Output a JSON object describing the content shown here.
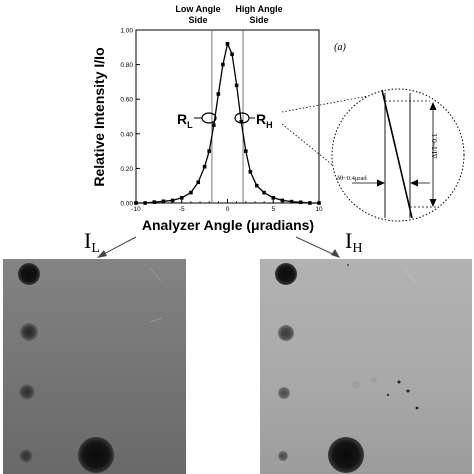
{
  "figure": {
    "panel_label": "(a)",
    "low_angle_label": [
      "Low Angle",
      "Side"
    ],
    "high_angle_label": [
      "High Angle",
      "Side"
    ],
    "r_left": {
      "main": "R",
      "sub": "L"
    },
    "r_right": {
      "main": "R",
      "sub": "H"
    },
    "image_left_label": {
      "main": "I",
      "sub": "L"
    },
    "image_right_label": {
      "main": "I",
      "sub": "H"
    },
    "inset": {
      "delta_theta": "δθ~0.4μrad",
      "delta_i": "ΔI/I~0.1"
    }
  },
  "chart_data": {
    "type": "line",
    "title": "",
    "xlabel": "Analyzer Angle (μradians)",
    "ylabel": "Relative Intensity   I/Io",
    "xlim": [
      -10,
      10
    ],
    "ylim": [
      0.0,
      1.0
    ],
    "x_ticks": [
      "-10",
      "-5",
      "0",
      "5",
      "10"
    ],
    "y_ticks": [
      "0.00",
      "0.20",
      "0.40",
      "0.60",
      "0.80",
      "1.00"
    ],
    "reference_lines_x": [
      -1.7,
      1.7
    ],
    "series": [
      {
        "points": [
          [
            -10,
            0.0
          ],
          [
            -9,
            0.0
          ],
          [
            -8,
            0.005
          ],
          [
            -7,
            0.01
          ],
          [
            -6,
            0.015
          ],
          [
            -5,
            0.03
          ],
          [
            -4,
            0.06
          ],
          [
            -3.2,
            0.12
          ],
          [
            -2.5,
            0.21
          ],
          [
            -2,
            0.3
          ],
          [
            -1.5,
            0.45
          ],
          [
            -1,
            0.63
          ],
          [
            -0.5,
            0.8
          ],
          [
            0,
            0.92
          ],
          [
            0.5,
            0.86
          ],
          [
            1,
            0.68
          ],
          [
            1.5,
            0.47
          ],
          [
            2,
            0.3
          ],
          [
            2.5,
            0.18
          ],
          [
            3.2,
            0.1
          ],
          [
            4,
            0.06
          ],
          [
            5,
            0.03
          ],
          [
            6,
            0.015
          ],
          [
            7,
            0.008
          ],
          [
            8,
            0.004
          ],
          [
            9,
            0.0
          ],
          [
            10,
            0.0
          ]
        ]
      }
    ]
  }
}
